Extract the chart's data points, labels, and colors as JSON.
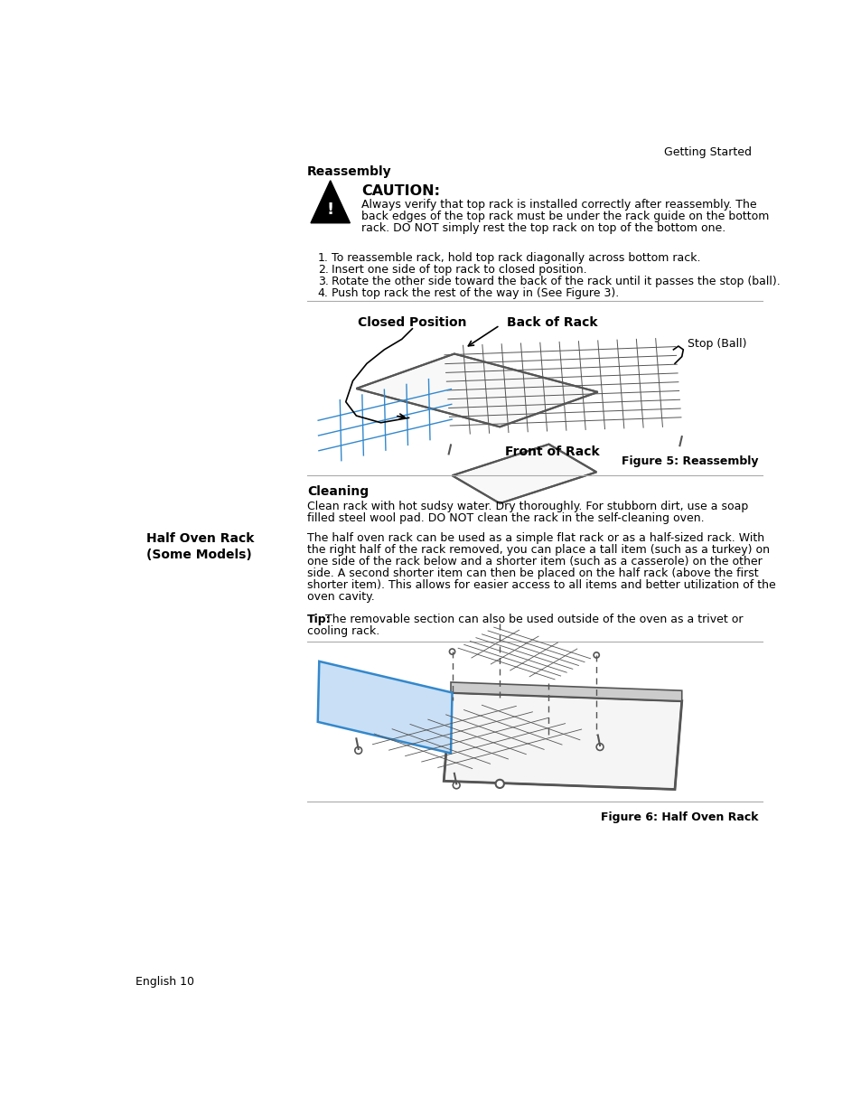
{
  "page_header_right": "Getting Started",
  "section1_title": "Reassembly",
  "caution_title": "CAUTION:",
  "caution_text_lines": [
    "Always verify that top rack is installed correctly after reassembly. The",
    "back edges of the top rack must be under the rack guide on the bottom",
    "rack. DO NOT simply rest the top rack on top of the bottom one."
  ],
  "steps": [
    "To reassemble rack, hold top rack diagonally across bottom rack.",
    "Insert one side of top rack to closed position.",
    "Rotate the other side toward the back of the rack until it passes the stop (ball).",
    "Push top rack the rest of the way in (See Figure 3)."
  ],
  "figure5_caption": "Figure 5: Reassembly",
  "fig5_label_closed": "Closed Position",
  "fig5_label_back": "Back of Rack",
  "fig5_label_stop": "Stop (Ball)",
  "fig5_label_front": "Front of Rack",
  "section2_cleaning_title": "Cleaning",
  "cleaning_text_lines": [
    "Clean rack with hot sudsy water. Dry thoroughly. For stubborn dirt, use a soap",
    "filled steel wool pad. DO NOT clean the rack in the self-cleaning oven."
  ],
  "section3_left_title": "Half Oven Rack (Some Models)",
  "section3_text_lines": [
    "The half oven rack can be used as a simple flat rack or as a half-sized rack. With",
    "the right half of the rack removed, you can place a tall item (such as a turkey) on",
    "one side of the rack below and a shorter item (such as a casserole) on the other",
    "side. A second shorter item can then be placed on the half rack (above the first",
    "shorter item). This allows for easier access to all items and better utilization of the",
    "oven cavity."
  ],
  "tip_bold": "Tip:",
  "tip_text": " The removable section can also be used outside of the oven as a trivet or",
  "tip_text2": "cooling rack.",
  "figure6_caption": "Figure 6: Half Oven Rack",
  "footer_text": "English 10",
  "bg_color": "#ffffff",
  "text_color": "#000000",
  "line_color": "#aaaaaa",
  "rack_color": "#555555",
  "blue_color": "#3388cc"
}
